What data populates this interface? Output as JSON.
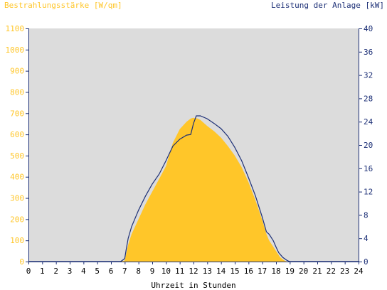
{
  "chart_data": {
    "type": "area",
    "xlabel": "Uhrzeit in Stunden",
    "ylabel_left": "Bestrahlungsstärke [W/qm]",
    "ylabel_right": "Leistung der Anlage [kW]",
    "x_ticks": [
      "0",
      "1",
      "2",
      "3",
      "4",
      "5",
      "6",
      "7",
      "8",
      "9",
      "10",
      "11",
      "12",
      "13",
      "14",
      "15",
      "16",
      "17",
      "18",
      "19",
      "20",
      "21",
      "22",
      "23",
      "24"
    ],
    "y_left_ticks": [
      "0",
      "100",
      "200",
      "300",
      "400",
      "500",
      "600",
      "700",
      "800",
      "900",
      "1000",
      "1100"
    ],
    "y_right_ticks": [
      "0",
      "4",
      "8",
      "12",
      "16",
      "20",
      "24",
      "28",
      "32",
      "36",
      "40"
    ],
    "xlim": [
      0,
      24
    ],
    "ylim_left": [
      0,
      1100
    ],
    "ylim_right": [
      0,
      40
    ],
    "colors": {
      "irradiance": "#ffc629",
      "power": "#1c2f76",
      "plot_bg": "#dcdcdc",
      "axis": "#1c2f76"
    },
    "series": [
      {
        "name": "Bestrahlungsstärke [W/qm]",
        "axis": "left",
        "x": [
          0,
          6.7,
          7.0,
          7.25,
          7.5,
          8.0,
          8.5,
          9.0,
          9.5,
          10.0,
          10.5,
          11.0,
          11.5,
          11.8,
          12.0,
          12.3,
          12.5,
          13.0,
          13.5,
          14.0,
          14.5,
          15.0,
          15.5,
          16.0,
          16.5,
          17.0,
          17.3,
          17.5,
          18.0,
          18.3,
          18.6,
          18.8,
          19.0,
          24
        ],
        "values": [
          0,
          0,
          5,
          80,
          130,
          200,
          270,
          330,
          390,
          450,
          560,
          625,
          660,
          675,
          678,
          675,
          668,
          640,
          615,
          585,
          545,
          500,
          445,
          375,
          290,
          195,
          130,
          100,
          50,
          20,
          5,
          0,
          0,
          0
        ]
      },
      {
        "name": "Leistung der Anlage [kW]",
        "axis": "right",
        "x": [
          0,
          6.7,
          7.0,
          7.1,
          7.25,
          7.5,
          8.0,
          8.5,
          9.0,
          9.5,
          10.0,
          10.5,
          11.0,
          11.5,
          11.8,
          12.0,
          12.2,
          12.5,
          13.0,
          13.5,
          14.0,
          14.5,
          15.0,
          15.5,
          16.0,
          16.5,
          17.0,
          17.3,
          17.5,
          17.8,
          18.0,
          18.2,
          18.5,
          18.8,
          19.0,
          24
        ],
        "values": [
          0,
          0,
          0.5,
          2.0,
          4.0,
          6.0,
          8.8,
          11.2,
          13.3,
          15.0,
          17.3,
          19.8,
          21.0,
          21.7,
          21.8,
          23.7,
          25.0,
          25.0,
          24.5,
          23.7,
          22.8,
          21.5,
          19.6,
          17.3,
          14.4,
          11.3,
          7.6,
          5.1,
          4.7,
          3.6,
          2.5,
          1.5,
          0.7,
          0.2,
          0,
          0
        ]
      }
    ]
  }
}
